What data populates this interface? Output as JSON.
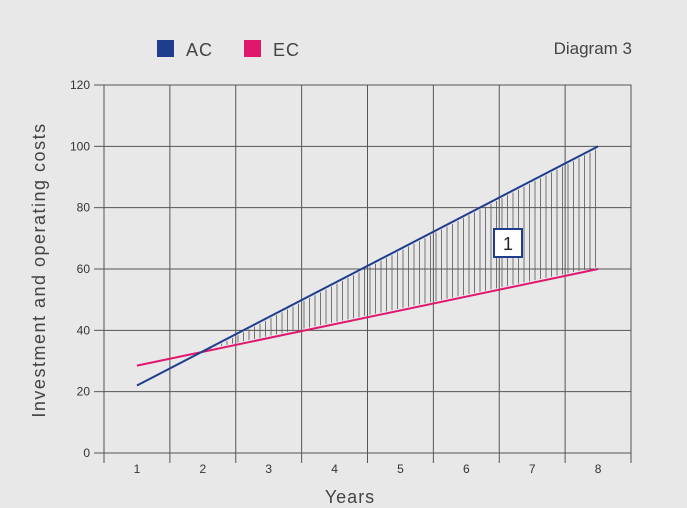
{
  "chart_data": {
    "type": "line",
    "title": "Diagram 3",
    "xlabel": "Years",
    "ylabel": "Investment and operating costs",
    "x": [
      1,
      8
    ],
    "x_ticks": [
      "1",
      "2",
      "3",
      "4",
      "5",
      "6",
      "7",
      "8"
    ],
    "y_ticks": [
      "0",
      "20",
      "40",
      "60",
      "80",
      "100",
      "120"
    ],
    "ylim": [
      0,
      120
    ],
    "grid": true,
    "legend_position": "top-left",
    "series": [
      {
        "name": "AC",
        "color": "#1f3c8f",
        "values": [
          22,
          100
        ]
      },
      {
        "name": "EC",
        "color": "#e0176d",
        "values": [
          28.5,
          60
        ]
      }
    ],
    "annotations": [
      {
        "text": "1",
        "description": "hatched area between AC and EC where AC exceeds EC"
      }
    ]
  }
}
